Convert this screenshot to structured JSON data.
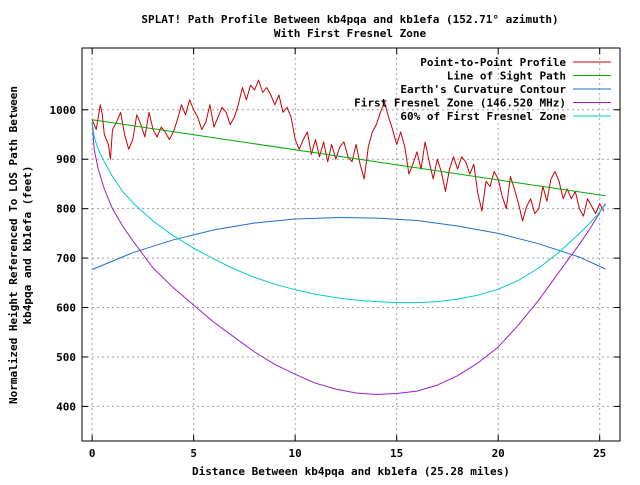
{
  "chart_data": {
    "type": "line",
    "title": "SPLAT! Path Profile Between kb4pqa and kb1efa (152.71° azimuth)",
    "subtitle": "With First Fresnel Zone",
    "xlabel": "Distance Between kb4pqa and kb1efa (25.28 miles)",
    "ylabel_line1": "Normalized Height Referenced To LOS Path Between",
    "ylabel_line2": "kb4pqa and kb1efa (feet)",
    "xlim": [
      -0.5,
      26
    ],
    "ylim": [
      330,
      1125
    ],
    "x_ticks": [
      0,
      5,
      10,
      15,
      20,
      25
    ],
    "y_ticks": [
      400,
      500,
      600,
      700,
      800,
      900,
      1000
    ],
    "x_tick_labels": [
      "0",
      "5",
      "10",
      "15",
      "20",
      "25"
    ],
    "y_tick_labels": [
      "400",
      "500",
      "600",
      "700",
      "800",
      "900",
      "1000"
    ],
    "grid": true,
    "legend_position": "top-right",
    "series": [
      {
        "name": "Point-to-Point Profile",
        "color": "#cc0000",
        "x": [
          0,
          0.2,
          0.4,
          0.5,
          0.6,
          0.8,
          0.9,
          1.0,
          1.2,
          1.4,
          1.6,
          1.8,
          2.0,
          2.2,
          2.4,
          2.6,
          2.8,
          3.0,
          3.2,
          3.4,
          3.6,
          3.8,
          4.0,
          4.2,
          4.4,
          4.6,
          4.8,
          5.0,
          5.2,
          5.4,
          5.6,
          5.8,
          6.0,
          6.2,
          6.4,
          6.6,
          6.8,
          7.0,
          7.2,
          7.4,
          7.6,
          7.8,
          8.0,
          8.2,
          8.4,
          8.6,
          8.8,
          9.0,
          9.2,
          9.4,
          9.6,
          9.8,
          10.0,
          10.2,
          10.4,
          10.6,
          10.8,
          11.0,
          11.2,
          11.4,
          11.6,
          11.8,
          12.0,
          12.2,
          12.4,
          12.6,
          12.8,
          13.0,
          13.2,
          13.4,
          13.6,
          13.8,
          14.0,
          14.2,
          14.4,
          14.6,
          14.8,
          15.0,
          15.2,
          15.4,
          15.6,
          15.8,
          16.0,
          16.2,
          16.4,
          16.6,
          16.8,
          17.0,
          17.2,
          17.4,
          17.6,
          17.8,
          18.0,
          18.2,
          18.4,
          18.6,
          18.8,
          19.0,
          19.2,
          19.4,
          19.6,
          19.8,
          20.0,
          20.2,
          20.4,
          20.6,
          20.8,
          21.0,
          21.2,
          21.4,
          21.6,
          21.8,
          22.0,
          22.2,
          22.4,
          22.6,
          22.8,
          23.0,
          23.2,
          23.4,
          23.6,
          23.8,
          24.0,
          24.2,
          24.4,
          24.6,
          24.8,
          25.0,
          25.2
        ],
        "y": [
          980,
          960,
          1010,
          990,
          950,
          930,
          900,
          960,
          975,
          995,
          950,
          920,
          940,
          990,
          970,
          945,
          995,
          960,
          945,
          965,
          955,
          940,
          955,
          980,
          1010,
          990,
          1020,
          1000,
          985,
          960,
          975,
          1010,
          965,
          985,
          1005,
          995,
          970,
          985,
          1010,
          1045,
          1020,
          1050,
          1040,
          1060,
          1035,
          1045,
          1030,
          1010,
          1030,
          995,
          1005,
          985,
          940,
          920,
          940,
          955,
          910,
          940,
          905,
          935,
          895,
          930,
          900,
          925,
          935,
          905,
          895,
          930,
          890,
          860,
          925,
          955,
          970,
          995,
          1015,
          985,
          960,
          930,
          955,
          925,
          870,
          890,
          915,
          880,
          935,
          895,
          860,
          900,
          875,
          835,
          880,
          905,
          880,
          905,
          895,
          870,
          890,
          830,
          795,
          855,
          845,
          875,
          860,
          825,
          800,
          865,
          840,
          810,
          775,
          805,
          820,
          790,
          800,
          845,
          815,
          860,
          875,
          855,
          820,
          840,
          820,
          835,
          800,
          785,
          820,
          805,
          790,
          810,
          795
        ]
      },
      {
        "name": "Line of Sight Path",
        "color": "#00aa00",
        "x": [
          0,
          25.28
        ],
        "y": [
          980,
          826
        ]
      },
      {
        "name": "Earth's Curvature Contour",
        "color": "#1f6fc9",
        "x": [
          0,
          2,
          4,
          6,
          8,
          10,
          12,
          12.64,
          14,
          16,
          18,
          20,
          22,
          24,
          25.28
        ],
        "y": [
          677,
          711,
          737,
          757,
          771,
          779,
          782,
          782,
          781,
          776,
          765,
          750,
          729,
          702,
          678
        ]
      },
      {
        "name": "First Fresnel Zone (146.520 MHz)",
        "color": "#9b1fc9",
        "x": [
          0,
          0.1,
          0.3,
          0.6,
          1,
          1.5,
          2,
          3,
          4,
          5,
          6,
          7,
          8,
          9,
          10,
          11,
          12,
          13,
          14,
          15,
          16,
          17,
          18,
          19,
          20,
          21,
          22,
          23,
          24,
          24.5,
          24.9,
          25.1,
          25.28
        ],
        "y": [
          975,
          920,
          880,
          840,
          800,
          765,
          735,
          680,
          640,
          605,
          570,
          540,
          510,
          485,
          465,
          447,
          435,
          427,
          424,
          426,
          431,
          443,
          462,
          488,
          520,
          565,
          615,
          672,
          728,
          758,
          785,
          800,
          810
        ]
      },
      {
        "name": "60% of First Fresnel Zone",
        "color": "#00cccc",
        "x": [
          0,
          0.1,
          0.3,
          0.6,
          1,
          1.5,
          2,
          3,
          4,
          5,
          6,
          7,
          8,
          9,
          10,
          11,
          12,
          13,
          14,
          15,
          16,
          17,
          18,
          19,
          20,
          21,
          22,
          23,
          24,
          24.5,
          24.9,
          25.1,
          25.28
        ],
        "y": [
          975,
          945,
          920,
          895,
          865,
          835,
          812,
          775,
          745,
          720,
          698,
          678,
          661,
          647,
          636,
          627,
          620,
          615,
          612,
          610,
          610,
          612,
          617,
          625,
          637,
          655,
          680,
          712,
          750,
          770,
          788,
          800,
          808
        ]
      }
    ]
  }
}
